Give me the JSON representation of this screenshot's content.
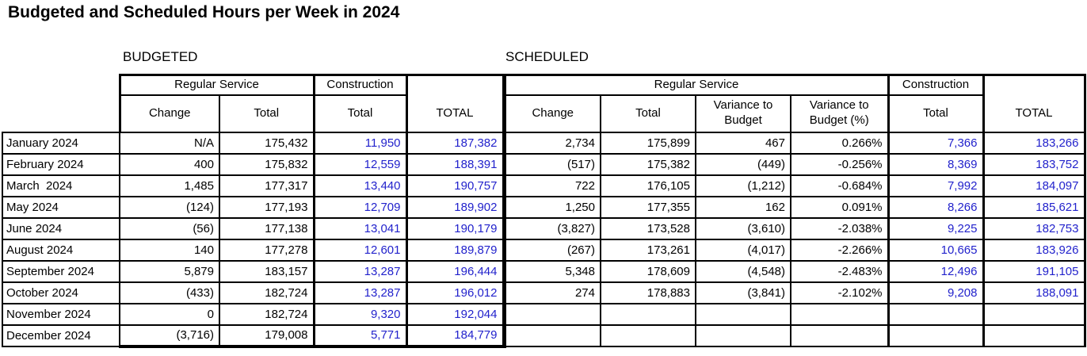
{
  "title": "Budgeted and Scheduled Hours per Week in 2024",
  "sections": {
    "budgeted_label": "BUDGETED",
    "scheduled_label": "SCHEDULED"
  },
  "headers": {
    "regular_service": "Regular Service",
    "construction": "Construction",
    "change": "Change",
    "total": "Total",
    "grand_total": "TOTAL",
    "variance_to_budget": "Variance to Budget",
    "variance_to_budget_pct": "Variance to Budget (%)"
  },
  "colors": {
    "accent_blue": "#2222cc",
    "border_black": "#000000"
  },
  "rows": [
    {
      "month": "January 2024",
      "budgeted": {
        "change": "N/A",
        "total": "175,432",
        "construction_total": "11,950",
        "grand_total": "187,382"
      },
      "scheduled": {
        "change": "2,734",
        "total": "175,899",
        "variance_to_budget": "467",
        "variance_to_budget_pct": "0.266%",
        "construction_total": "7,366",
        "grand_total": "183,266"
      }
    },
    {
      "month": "February 2024",
      "budgeted": {
        "change": "400",
        "total": "175,832",
        "construction_total": "12,559",
        "grand_total": "188,391"
      },
      "scheduled": {
        "change": "(517)",
        "total": "175,382",
        "variance_to_budget": "(449)",
        "variance_to_budget_pct": "-0.256%",
        "construction_total": "8,369",
        "grand_total": "183,752"
      }
    },
    {
      "month": "March  2024",
      "budgeted": {
        "change": "1,485",
        "total": "177,317",
        "construction_total": "13,440",
        "grand_total": "190,757"
      },
      "scheduled": {
        "change": "722",
        "total": "176,105",
        "variance_to_budget": "(1,212)",
        "variance_to_budget_pct": "-0.684%",
        "construction_total": "7,992",
        "grand_total": "184,097"
      }
    },
    {
      "month": "May 2024",
      "budgeted": {
        "change": "(124)",
        "total": "177,193",
        "construction_total": "12,709",
        "grand_total": "189,902"
      },
      "scheduled": {
        "change": "1,250",
        "total": "177,355",
        "variance_to_budget": "162",
        "variance_to_budget_pct": "0.091%",
        "construction_total": "8,266",
        "grand_total": "185,621"
      }
    },
    {
      "month": "June 2024",
      "budgeted": {
        "change": "(56)",
        "total": "177,138",
        "construction_total": "13,041",
        "grand_total": "190,179"
      },
      "scheduled": {
        "change": "(3,827)",
        "total": "173,528",
        "variance_to_budget": "(3,610)",
        "variance_to_budget_pct": "-2.038%",
        "construction_total": "9,225",
        "grand_total": "182,753"
      }
    },
    {
      "month": "August 2024",
      "budgeted": {
        "change": "140",
        "total": "177,278",
        "construction_total": "12,601",
        "grand_total": "189,879"
      },
      "scheduled": {
        "change": "(267)",
        "total": "173,261",
        "variance_to_budget": "(4,017)",
        "variance_to_budget_pct": "-2.266%",
        "construction_total": "10,665",
        "grand_total": "183,926"
      }
    },
    {
      "month": "September 2024",
      "budgeted": {
        "change": "5,879",
        "total": "183,157",
        "construction_total": "13,287",
        "grand_total": "196,444"
      },
      "scheduled": {
        "change": "5,348",
        "total": "178,609",
        "variance_to_budget": "(4,548)",
        "variance_to_budget_pct": "-2.483%",
        "construction_total": "12,496",
        "grand_total": "191,105"
      }
    },
    {
      "month": "October 2024",
      "budgeted": {
        "change": "(433)",
        "total": "182,724",
        "construction_total": "13,287",
        "grand_total": "196,012"
      },
      "scheduled": {
        "change": "274",
        "total": "178,883",
        "variance_to_budget": "(3,841)",
        "variance_to_budget_pct": "-2.102%",
        "construction_total": "9,208",
        "grand_total": "188,091"
      }
    },
    {
      "month": "November 2024",
      "budgeted": {
        "change": "0",
        "total": "182,724",
        "construction_total": "9,320",
        "grand_total": "192,044"
      },
      "scheduled": {
        "change": "",
        "total": "",
        "variance_to_budget": "",
        "variance_to_budget_pct": "",
        "construction_total": "",
        "grand_total": ""
      }
    },
    {
      "month": "December 2024",
      "budgeted": {
        "change": "(3,716)",
        "total": "179,008",
        "construction_total": "5,771",
        "grand_total": "184,779"
      },
      "scheduled": {
        "change": "",
        "total": "",
        "variance_to_budget": "",
        "variance_to_budget_pct": "",
        "construction_total": "",
        "grand_total": ""
      }
    }
  ]
}
